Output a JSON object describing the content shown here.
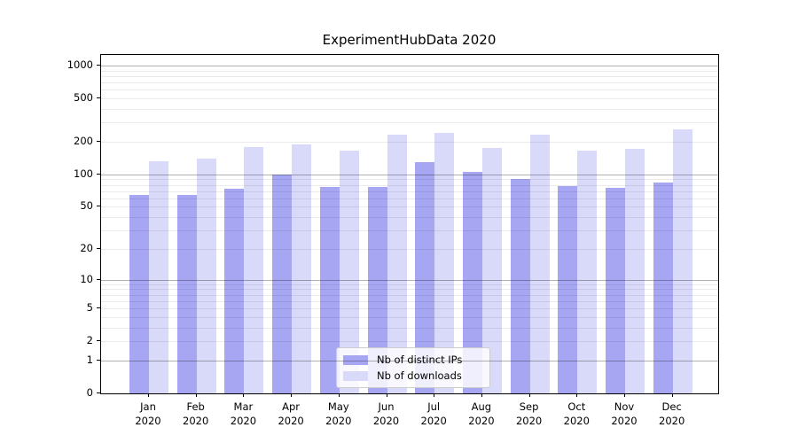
{
  "chart_data": {
    "type": "bar",
    "title": "ExperimentHubData 2020",
    "yscale": "log(1+x)",
    "ylim": [
      0,
      1270
    ],
    "grid": "major dark gray at powers of 10, minor light gray at log subdivisions",
    "legend_position": "lower center inside plot",
    "categories": [
      "Jan",
      "Feb",
      "Mar",
      "Apr",
      "May",
      "Jun",
      "Jul",
      "Aug",
      "Sep",
      "Oct",
      "Nov",
      "Dec"
    ],
    "x_year": "2020",
    "y_ticks": [
      1000,
      500,
      200,
      100,
      50,
      20,
      10,
      5,
      2,
      1,
      0
    ],
    "series": [
      {
        "name": "Nb of distinct IPs",
        "color": "#a6a6f3",
        "values": [
          64,
          64,
          73,
          99,
          77,
          77,
          130,
          106,
          90,
          78,
          75,
          84
        ]
      },
      {
        "name": "Nb of downloads",
        "color": "#d9d9f9",
        "values": [
          133,
          140,
          178,
          188,
          166,
          231,
          243,
          175,
          232,
          164,
          173,
          259
        ]
      }
    ]
  },
  "colors": {
    "background": "#ffffff",
    "axis": "#000000",
    "major_grid": "#b0b0b0",
    "minor_grid": "#ececec",
    "legend_border": "#cccccc"
  }
}
